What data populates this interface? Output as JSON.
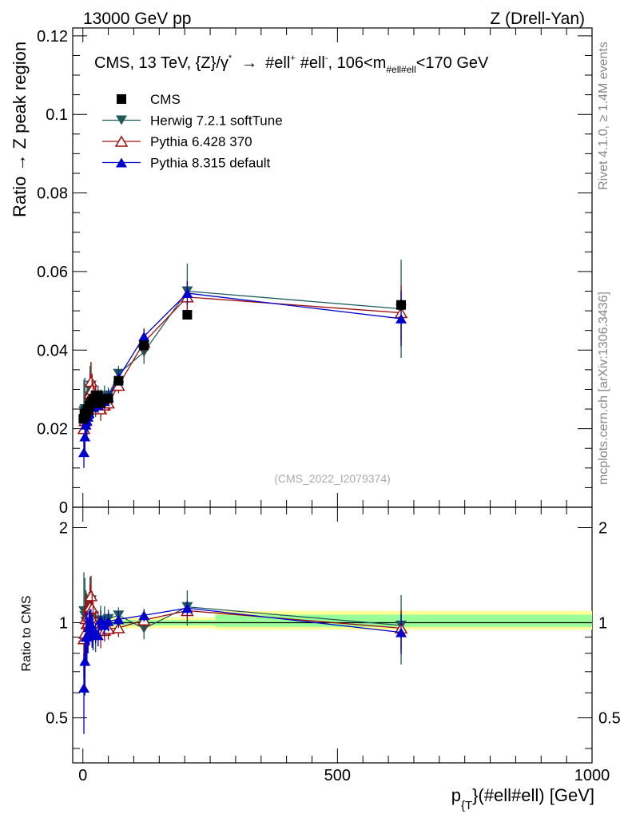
{
  "header": {
    "energy_label": "13000 GeV pp",
    "process_label": "Z (Drell-Yan)"
  },
  "side_labels": {
    "rivet": "Rivet 4.1.0, ≥ 1.4M events",
    "mcplots": "mcplots.cern.ch [arXiv:1306.3436]"
  },
  "chart_data": {
    "type": "scatter",
    "title": "CMS, 13 TeV, {Z}/γ* → #ell⁺ #ell⁻, 106<m_{#ell#ell}<170 GeV",
    "title_parts": {
      "a": "CMS, 13 TeV, {Z}/γ",
      "star": "*",
      "arrow": "→",
      "b": "#ell",
      "plus": "+",
      "c": "#ell",
      "minus": "-",
      "d": ", 106<m",
      "sub": "#ell#ell",
      "e": "<170 GeV"
    },
    "analysis_id": "(CMS_2022_I2079374)",
    "xlabel_main": "p",
    "xlabel_sub": "{T",
    "xlabel_rest": "}(#ell#ell) [GeV]",
    "ylabel": "Ratio → Z peak region",
    "ratio_ylabel": "Ratio to CMS",
    "xlim": [
      -20,
      1000
    ],
    "ylim": [
      0,
      0.122
    ],
    "ratio_ylim": [
      0.36,
      2.32
    ],
    "x_ticks": [
      "0",
      "500",
      "1000"
    ],
    "y_ticks": [
      "0",
      "0.02",
      "0.04",
      "0.06",
      "0.08",
      "0.1",
      "0.12"
    ],
    "ratio_y_ticks": [
      "0.5",
      "1",
      "2"
    ],
    "legend": {
      "position": "top-left",
      "entries": [
        "CMS",
        "Herwig 7.2.1 softTune",
        "Pythia 6.428 370",
        "Pythia 8.315 default"
      ]
    },
    "bands": [
      {
        "x0": 0,
        "x1": 260,
        "yellow": [
          0.96,
          1.04
        ],
        "green": [
          0.98,
          1.02
        ]
      },
      {
        "x0": 260,
        "x1": 1000,
        "yellow": [
          0.95,
          1.09
        ],
        "green": [
          0.97,
          1.06
        ]
      }
    ],
    "series": [
      {
        "name": "CMS",
        "color": "#000000",
        "marker": "square",
        "x": [
          1,
          3,
          5,
          7,
          9,
          11,
          13,
          15,
          17.5,
          20,
          25,
          30,
          35,
          42.5,
          50,
          70,
          120,
          205,
          625
        ],
        "y": [
          0.0225,
          0.0238,
          0.0233,
          0.0242,
          0.025,
          0.0248,
          0.0258,
          0.0263,
          0.027,
          0.0275,
          0.0285,
          0.0285,
          0.0265,
          0.0275,
          0.0277,
          0.0322,
          0.0412,
          0.049,
          0.0515
        ],
        "yerr": [
          0.001,
          0.001,
          0.001,
          0.001,
          0.001,
          0.001,
          0.001,
          0.001,
          0.001,
          0.001,
          0.001,
          0.001,
          0.001,
          0.001,
          0.001,
          0.001,
          0.001,
          0.001,
          0.0015
        ]
      },
      {
        "name": "Herwig 7.2.1 softTune",
        "color": "#1f5a5a",
        "marker": "triangle-down",
        "x": [
          2,
          4,
          6,
          8,
          10,
          12,
          14,
          16,
          18,
          20,
          25,
          30,
          35,
          42.5,
          50,
          70,
          120,
          205,
          625
        ],
        "y": [
          0.0245,
          0.025,
          0.0235,
          0.024,
          0.025,
          0.026,
          0.03,
          0.031,
          0.0285,
          0.028,
          0.027,
          0.028,
          0.027,
          0.028,
          0.0285,
          0.034,
          0.0395,
          0.055,
          0.0505
        ],
        "yerr": [
          0.008,
          0.008,
          0.006,
          0.006,
          0.005,
          0.005,
          0.006,
          0.006,
          0.005,
          0.004,
          0.004,
          0.003,
          0.003,
          0.003,
          0.002,
          0.002,
          0.003,
          0.007,
          0.0125
        ]
      },
      {
        "name": "Pythia 6.428 370",
        "color": "#a01010",
        "marker": "triangle-up-open",
        "x": [
          2,
          4,
          6,
          8,
          10,
          12,
          14,
          16,
          18,
          20,
          25,
          30,
          35,
          42.5,
          50,
          70,
          120,
          205,
          625
        ],
        "y": [
          0.02,
          0.022,
          0.024,
          0.024,
          0.025,
          0.026,
          0.029,
          0.032,
          0.03,
          0.028,
          0.028,
          0.027,
          0.025,
          0.026,
          0.0265,
          0.031,
          0.042,
          0.0535,
          0.0495
        ],
        "yerr": [
          0.005,
          0.005,
          0.005,
          0.005,
          0.004,
          0.004,
          0.005,
          0.005,
          0.004,
          0.004,
          0.003,
          0.003,
          0.003,
          0.002,
          0.002,
          0.002,
          0.003,
          0.004,
          0.007
        ]
      },
      {
        "name": "Pythia 8.315 default",
        "color": "#0000cc",
        "marker": "triangle-up",
        "x": [
          2,
          4,
          6,
          8,
          10,
          12,
          14,
          16,
          18,
          20,
          25,
          30,
          35,
          42.5,
          50,
          70,
          120,
          205,
          625
        ],
        "y": [
          0.014,
          0.018,
          0.021,
          0.022,
          0.023,
          0.024,
          0.0255,
          0.026,
          0.0255,
          0.0255,
          0.0265,
          0.026,
          0.027,
          0.027,
          0.028,
          0.033,
          0.0435,
          0.0545,
          0.048
        ],
        "yerr": [
          0.004,
          0.004,
          0.004,
          0.004,
          0.003,
          0.003,
          0.003,
          0.003,
          0.003,
          0.003,
          0.002,
          0.002,
          0.002,
          0.002,
          0.002,
          0.002,
          0.002,
          0.003,
          0.007
        ]
      }
    ]
  }
}
